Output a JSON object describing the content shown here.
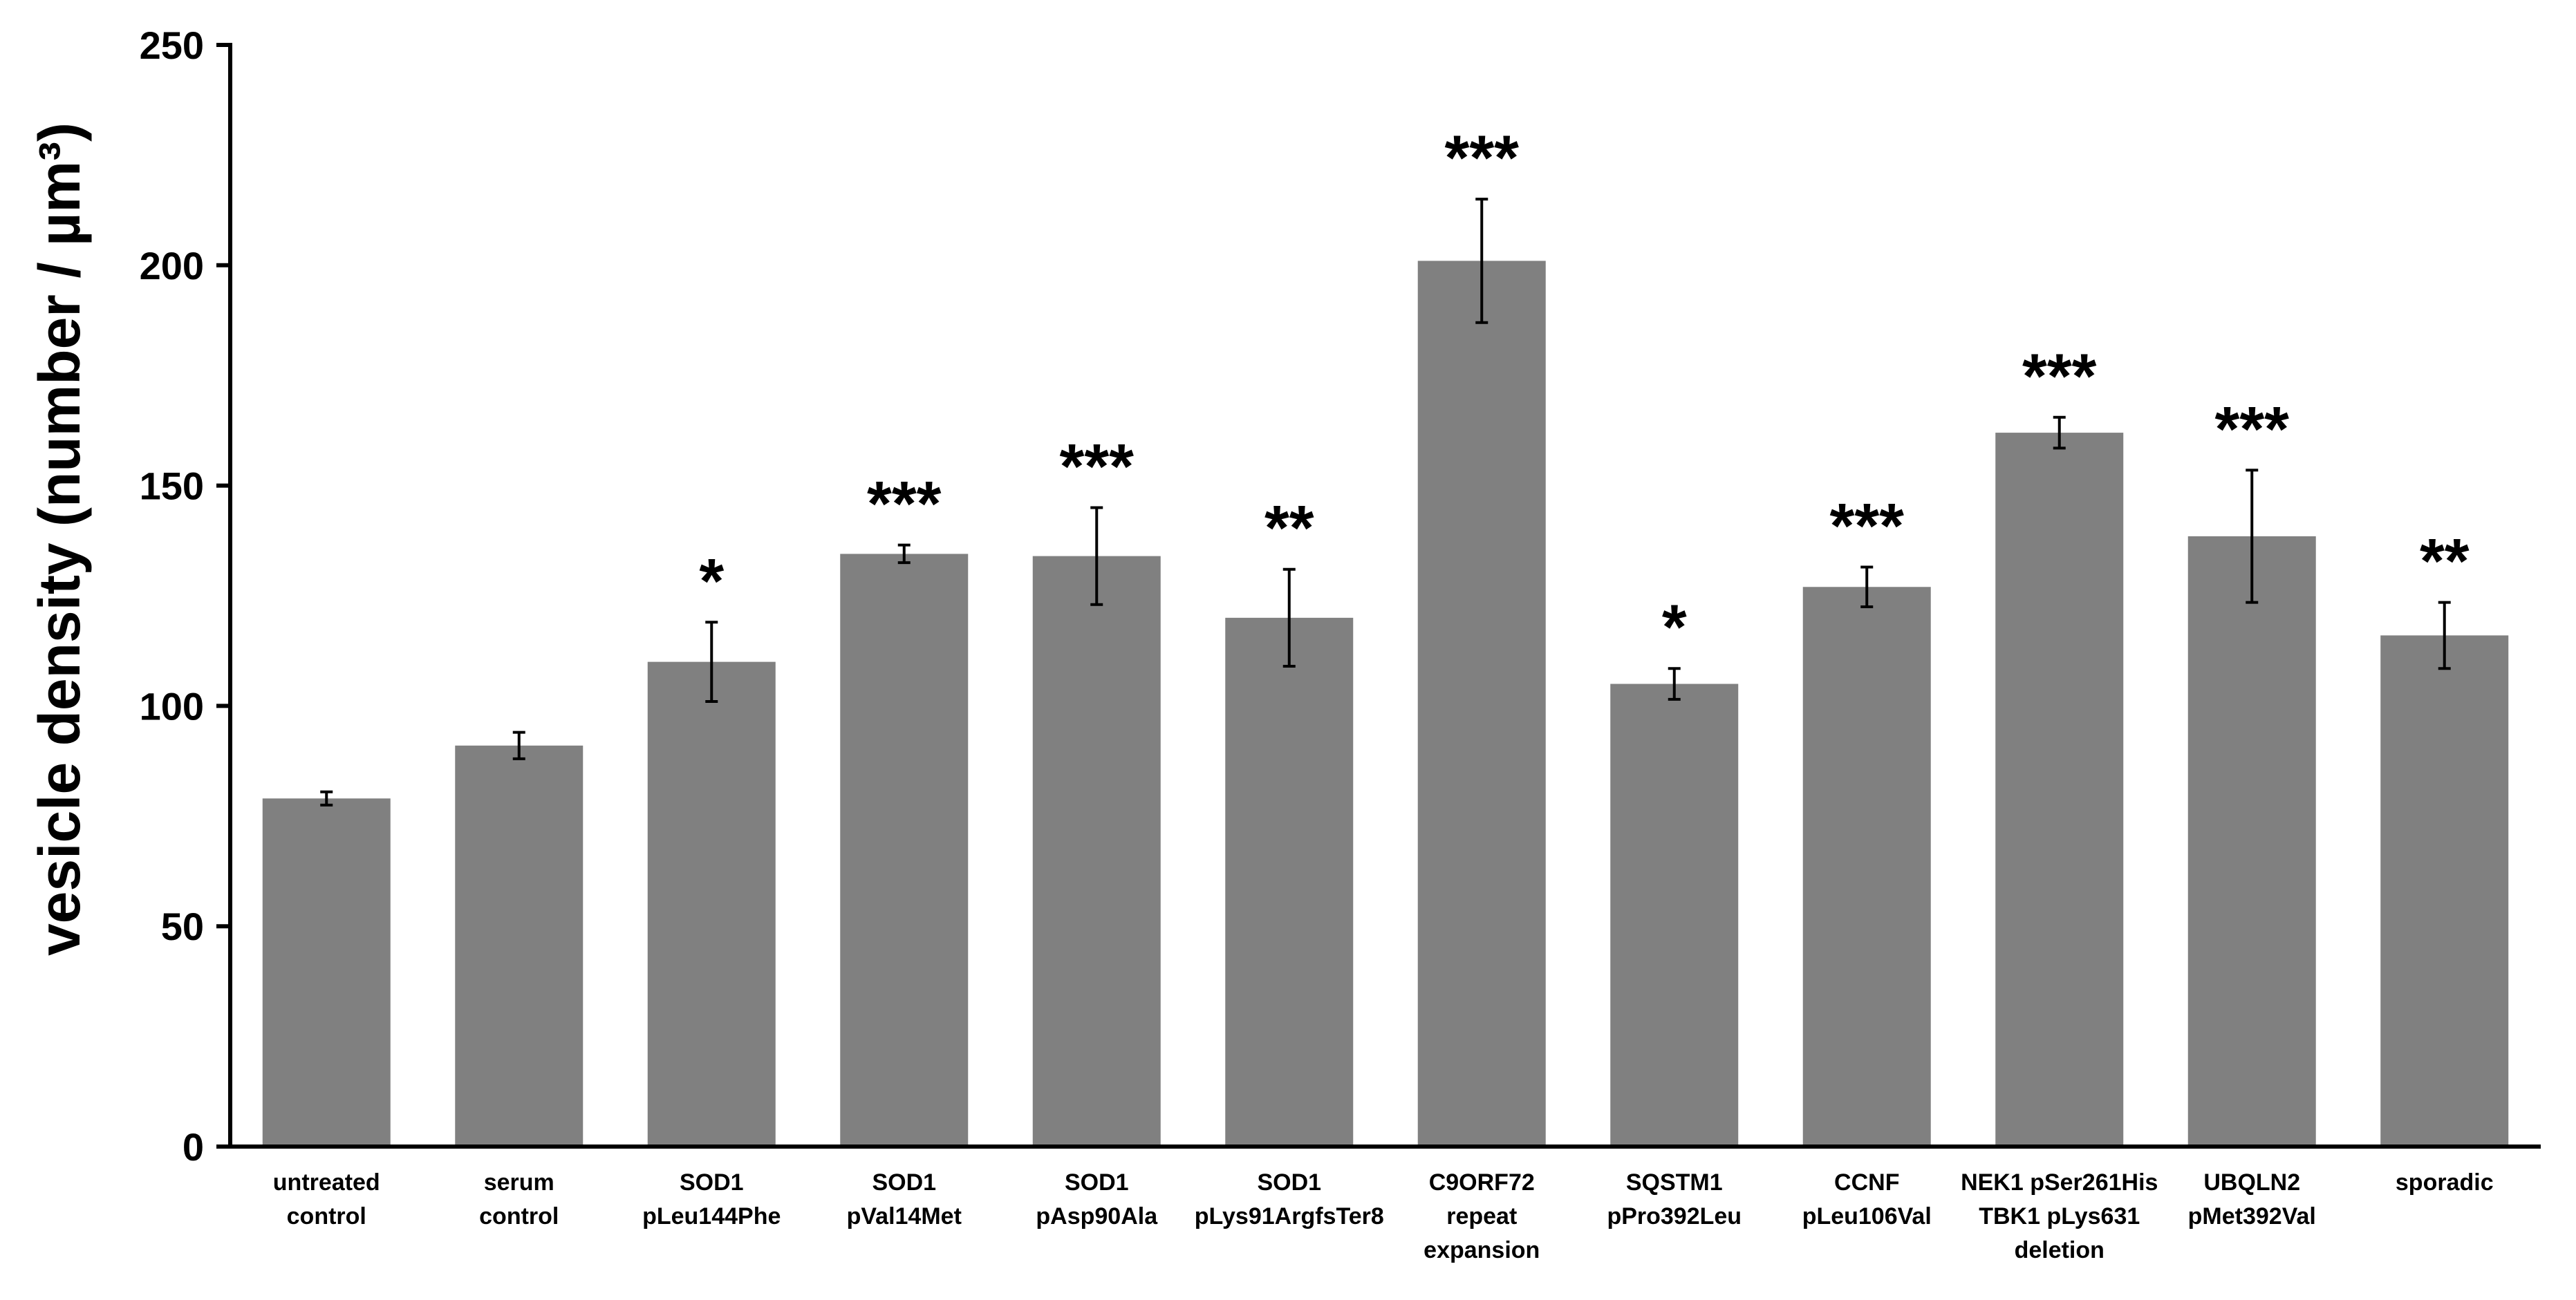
{
  "chart_data": {
    "type": "bar",
    "title": "",
    "xlabel": "",
    "ylabel": "vesicle density (number / µm³)",
    "ylim": [
      0,
      250
    ],
    "yticks": [
      0,
      50,
      100,
      150,
      200,
      250
    ],
    "grid": false,
    "bar_color": "#808080",
    "axis_color": "#000000",
    "categories": [
      [
        "untreated",
        "control"
      ],
      [
        "serum",
        "control"
      ],
      [
        "SOD1",
        "pLeu144Phe"
      ],
      [
        "SOD1",
        "pVal14Met"
      ],
      [
        "SOD1",
        "pAsp90Ala"
      ],
      [
        "SOD1",
        "pLys91ArgfsTer8"
      ],
      [
        "C9ORF72",
        "repeat",
        "expansion"
      ],
      [
        "SQSTM1",
        "pPro392Leu"
      ],
      [
        "CCNF",
        "pLeu106Val"
      ],
      [
        "NEK1 pSer261His",
        "TBK1 pLys631",
        "deletion"
      ],
      [
        "UBQLN2",
        "pMet392Val"
      ],
      [
        "sporadic"
      ]
    ],
    "values": [
      79,
      91,
      110,
      134.5,
      134,
      120,
      201,
      105,
      127,
      162,
      138.5,
      116
    ],
    "errors": [
      1.5,
      3,
      9,
      2,
      11,
      11,
      14,
      3.5,
      4.5,
      3.5,
      15,
      7.5
    ],
    "significance": [
      "",
      "",
      "*",
      "***",
      "***",
      "**",
      "***",
      "*",
      "***",
      "***",
      "***",
      "**"
    ]
  }
}
